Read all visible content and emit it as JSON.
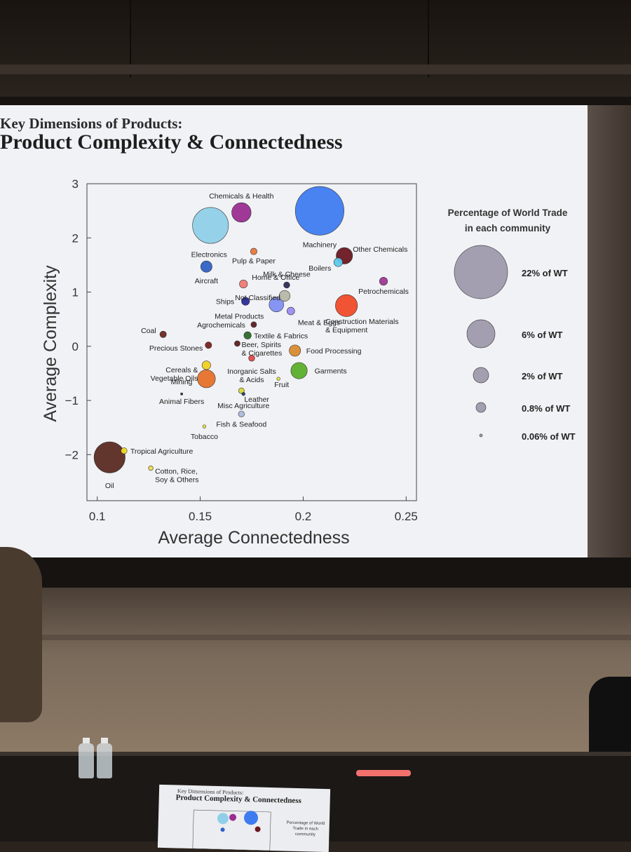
{
  "slide": {
    "supertitle": "Key Dimensions of Products:",
    "title": "Product Complexity & Connectedness"
  },
  "chart_data": {
    "type": "scatter",
    "xlabel": "Average Connectedness",
    "ylabel": "Average Complexity",
    "xlim": [
      0.095,
      0.255
    ],
    "ylim": [
      -2.85,
      3.0
    ],
    "xticks": [
      0.1,
      0.15,
      0.2,
      0.25
    ],
    "xtick_labels": [
      "0.1",
      "0.15",
      "0.2",
      "0.25"
    ],
    "yticks": [
      3,
      2,
      1,
      0,
      -1,
      -2
    ],
    "ytick_labels": [
      "3",
      "2",
      "1",
      "0",
      "−1",
      "−2"
    ],
    "points": [
      {
        "label": "Chemicals & Health",
        "x": 0.17,
        "y": 2.47,
        "share": 3.5,
        "color": "#9b2d92"
      },
      {
        "label": "Machinery",
        "x": 0.208,
        "y": 2.5,
        "share": 22.0,
        "color": "#3f7bf0"
      },
      {
        "label": "Electronics",
        "x": 0.155,
        "y": 2.23,
        "share": 12.0,
        "color": "#8fd0e8"
      },
      {
        "label": "Other Chemicals",
        "x": 0.22,
        "y": 1.67,
        "share": 2.5,
        "color": "#6b1720"
      },
      {
        "label": "Pulp & Paper",
        "x": 0.176,
        "y": 1.75,
        "share": 0.4,
        "color": "#e8783a"
      },
      {
        "label": "Boilers",
        "x": 0.217,
        "y": 1.55,
        "share": 0.7,
        "color": "#5ec9ea"
      },
      {
        "label": "Aircraft",
        "x": 0.153,
        "y": 1.47,
        "share": 1.2,
        "color": "#2f61c4"
      },
      {
        "label": "Home & Office",
        "x": 0.171,
        "y": 1.15,
        "share": 0.6,
        "color": "#f07a73"
      },
      {
        "label": "Milk & Cheese",
        "x": 0.192,
        "y": 1.13,
        "share": 0.35,
        "color": "#2c2c55"
      },
      {
        "label": "Petrochemicals",
        "x": 0.239,
        "y": 1.2,
        "share": 0.6,
        "color": "#a03696"
      },
      {
        "label": "Not Classified",
        "x": 0.191,
        "y": 0.93,
        "share": 1.1,
        "color": "#b7b7a8"
      },
      {
        "label": "Ships",
        "x": 0.172,
        "y": 0.83,
        "share": 0.6,
        "color": "#2a2a9c"
      },
      {
        "label": "Metal Products",
        "x": 0.187,
        "y": 0.77,
        "share": 2.0,
        "color": "#7f8ff3"
      },
      {
        "label": "Meat & Eggs",
        "x": 0.194,
        "y": 0.65,
        "share": 0.55,
        "color": "#9a8cf2"
      },
      {
        "label": "Construction Materials & Equipment",
        "x": 0.221,
        "y": 0.75,
        "share": 4.5,
        "color": "#f04a2a"
      },
      {
        "label": "Agrochemicals",
        "x": 0.176,
        "y": 0.4,
        "share": 0.3,
        "color": "#5a1e24"
      },
      {
        "label": "Coal",
        "x": 0.132,
        "y": 0.22,
        "share": 0.4,
        "color": "#6b2820"
      },
      {
        "label": "Textile & Fabrics",
        "x": 0.173,
        "y": 0.2,
        "share": 0.5,
        "color": "#2c6a2a"
      },
      {
        "label": "Precious Stones",
        "x": 0.154,
        "y": 0.02,
        "share": 0.4,
        "color": "#7a2020"
      },
      {
        "label": "Beer, Spirits & Cigarettes",
        "x": 0.168,
        "y": 0.05,
        "share": 0.3,
        "color": "#5b1e20"
      },
      {
        "label": "Food Processing",
        "x": 0.196,
        "y": -0.08,
        "share": 1.2,
        "color": "#d98a30"
      },
      {
        "label": "Inorganic Salts & Acids",
        "x": 0.175,
        "y": -0.22,
        "share": 0.35,
        "color": "#e0484a"
      },
      {
        "label": "Cereals & Vegetable Oils",
        "x": 0.153,
        "y": -0.35,
        "share": 0.7,
        "color": "#f0d020"
      },
      {
        "label": "Garments",
        "x": 0.198,
        "y": -0.45,
        "share": 2.5,
        "color": "#5aae2a"
      },
      {
        "label": "Mining",
        "x": 0.153,
        "y": -0.6,
        "share": 3.0,
        "color": "#e5702a"
      },
      {
        "label": "Fruit",
        "x": 0.188,
        "y": -0.6,
        "share": 0.1,
        "color": "#e6e040"
      },
      {
        "label": "Leather",
        "x": 0.17,
        "y": -0.82,
        "share": 0.3,
        "color": "#d8d836"
      },
      {
        "label": "Animal Fibers",
        "x": 0.141,
        "y": -0.88,
        "share": 0.05,
        "color": "#2c2c40"
      },
      {
        "label": "Misc Agriculture",
        "x": 0.171,
        "y": -0.88,
        "share": 0.1,
        "color": "#1e3a6a"
      },
      {
        "label": "Fish & Seafood",
        "x": 0.17,
        "y": -1.25,
        "share": 0.35,
        "color": "#aab8dc"
      },
      {
        "label": "Tobacco",
        "x": 0.152,
        "y": -1.48,
        "share": 0.1,
        "color": "#e6e640"
      },
      {
        "label": "Tropical Agriculture",
        "x": 0.113,
        "y": -1.93,
        "share": 0.35,
        "color": "#f0d820"
      },
      {
        "label": "Oil",
        "x": 0.106,
        "y": -2.05,
        "share": 9.0,
        "color": "#5a2a22"
      },
      {
        "label": "Cotton, Rice, Soy & Others",
        "x": 0.126,
        "y": -2.25,
        "share": 0.2,
        "color": "#f0dc50"
      }
    ],
    "size_legend": {
      "title": "Percentage of World Trade in each community",
      "entries": [
        {
          "label": "22% of WT",
          "share": 22
        },
        {
          "label": "6% of WT",
          "share": 6
        },
        {
          "label": "2% of WT",
          "share": 2
        },
        {
          "label": "0.8% of WT",
          "share": 0.8
        },
        {
          "label": "0.06% of WT",
          "share": 0.06
        }
      ],
      "color": "#a49fb0"
    },
    "grid": false,
    "legend_position": "right"
  },
  "handout": {
    "supertitle": "Key Dimensions of Products:",
    "title": "Product Complexity & Connectedness",
    "legend_title": "Percentage of World Trade in each community"
  }
}
